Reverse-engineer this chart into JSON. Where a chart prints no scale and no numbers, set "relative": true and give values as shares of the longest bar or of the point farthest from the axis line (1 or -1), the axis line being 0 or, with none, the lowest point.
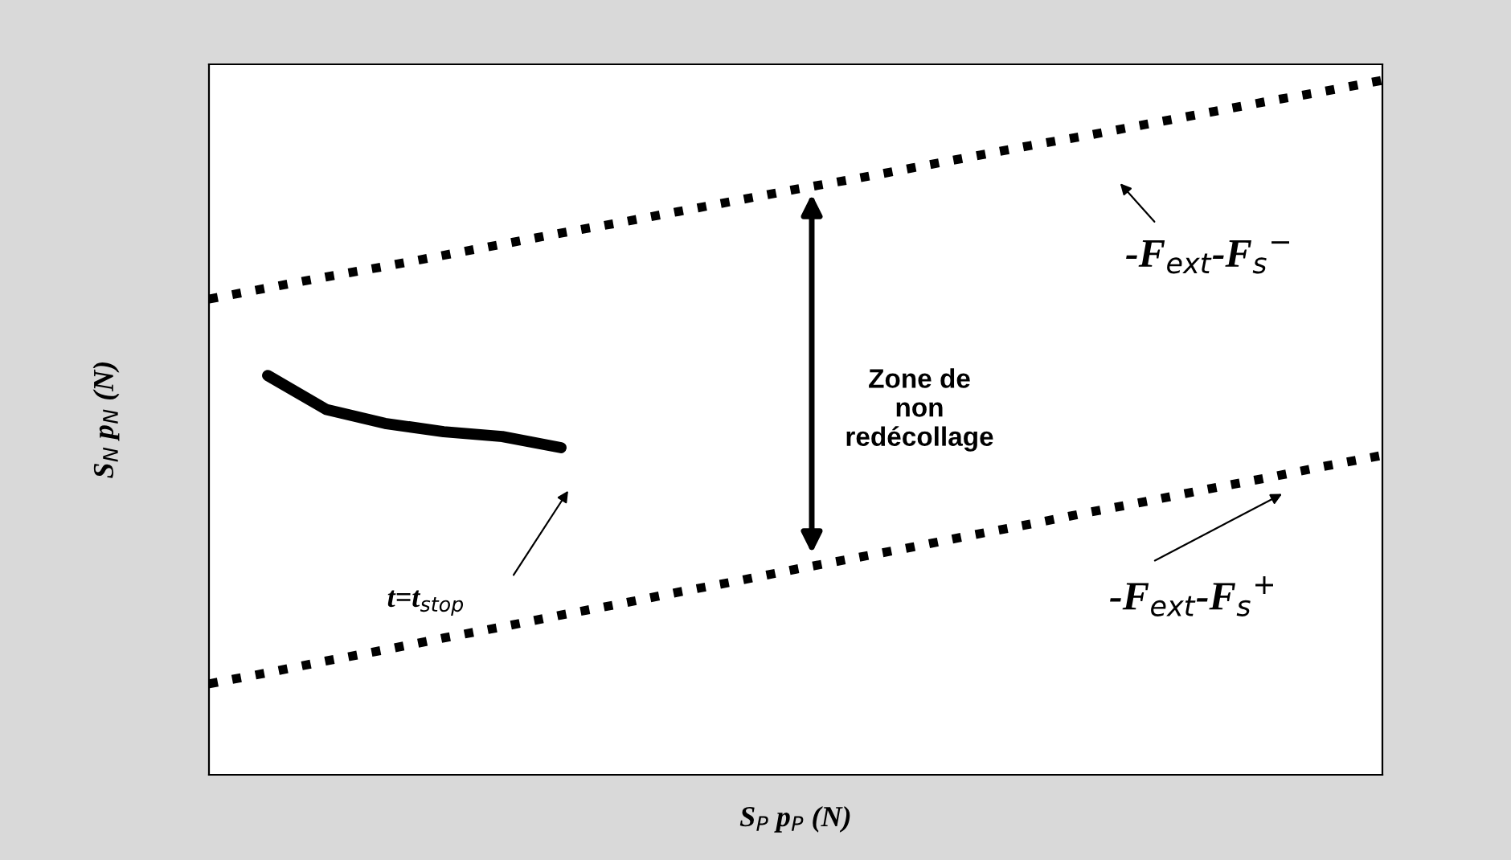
{
  "chart_data": {
    "type": "line",
    "relative": true,
    "xlabel": "S$_{P}$ p$_{P}$ (N)",
    "ylabel": "S$_{N}$ p$_{N}$ (N)",
    "categories": [
      null,
      null,
      null,
      null,
      null,
      null,
      null,
      null,
      null,
      null,
      null,
      null,
      null,
      null,
      null,
      null,
      null,
      null,
      null,
      null,
      null
    ],
    "series": [
      {
        "color": "#000000",
        "line_style": "dotted",
        "values": [
          0.685,
          0.701,
          0.717,
          0.732,
          0.748,
          0.764,
          0.78,
          0.795,
          0.811,
          0.827,
          0.843,
          0.858,
          0.874,
          0.89,
          0.906,
          0.921,
          0.937,
          0.953,
          0.969,
          0.984,
          1.0
        ]
      },
      {
        "color": "#000000",
        "line_style": "dotted",
        "values": [
          0.131,
          0.147,
          0.164,
          0.18,
          0.197,
          0.213,
          0.23,
          0.246,
          0.263,
          0.279,
          0.296,
          0.312,
          0.328,
          0.345,
          0.361,
          0.378,
          0.394,
          0.411,
          0.427,
          0.444,
          0.46
        ]
      },
      {
        "color": "#000000",
        "line_style": "solid",
        "values": [
          null,
          0.575,
          0.526,
          0.506,
          0.494,
          0.487,
          0.471,
          null,
          null,
          null,
          null,
          null,
          null,
          null,
          null,
          null,
          null,
          null,
          null,
          null,
          null
        ]
      }
    ],
    "annotations": [
      "Zone de\nnon\nredécollage",
      "-F$_{ext}$-F$_{s}$$^{−}$",
      "-F$_{ext}$-F$_{s}$$^{+}$",
      "t=t$_{stop}$"
    ],
    "tick_labels": false
  }
}
